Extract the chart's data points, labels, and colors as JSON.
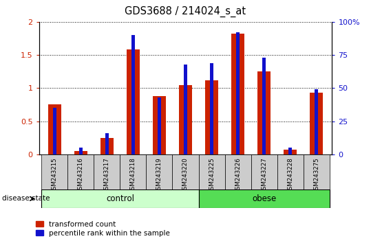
{
  "title": "GDS3688 / 214024_s_at",
  "samples": [
    "GSM243215",
    "GSM243216",
    "GSM243217",
    "GSM243218",
    "GSM243219",
    "GSM243220",
    "GSM243225",
    "GSM243226",
    "GSM243227",
    "GSM243228",
    "GSM243275"
  ],
  "transformed_count": [
    0.75,
    0.05,
    0.25,
    1.58,
    0.88,
    1.04,
    1.12,
    1.82,
    1.25,
    0.07,
    0.93
  ],
  "percentile_rank": [
    35,
    5,
    16,
    90,
    43,
    68,
    69,
    92,
    73,
    5,
    49
  ],
  "control_count": 6,
  "obese_count": 5,
  "control_label": "control",
  "obese_label": "obese",
  "disease_state_label": "disease state",
  "legend_red_label": "transformed count",
  "legend_blue_label": "percentile rank within the sample",
  "ylim_left": [
    0,
    2
  ],
  "ylim_right": [
    0,
    100
  ],
  "yticks_left": [
    0,
    0.5,
    1.0,
    1.5,
    2.0
  ],
  "yticks_right": [
    0,
    25,
    50,
    75,
    100
  ],
  "ytick_left_labels": [
    "0",
    "0.5",
    "1",
    "1.5",
    "2"
  ],
  "ytick_right_labels": [
    "0",
    "25",
    "50",
    "75",
    "100%"
  ],
  "bar_color_red": "#cc2200",
  "bar_color_blue": "#1111cc",
  "control_bg": "#ccffcc",
  "obese_bg": "#55dd55",
  "tick_bg": "#cccccc",
  "red_bar_width": 0.5,
  "blue_bar_width": 0.13
}
